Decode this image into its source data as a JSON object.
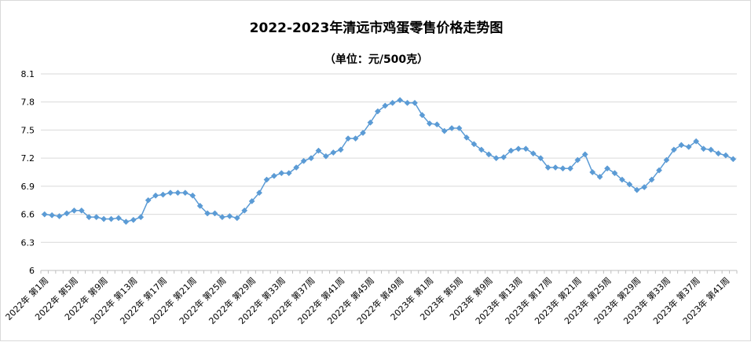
{
  "chart_data": {
    "type": "line",
    "title": "2022-2023年清远市鸡蛋零售价格走势图",
    "subtitle": "（单位：元/500克）",
    "y_ticks": [
      "8.1",
      "7.8",
      "7.5",
      "7.2",
      "6.9",
      "6.6",
      "6.3",
      "6"
    ],
    "ylim": [
      6,
      8.1
    ],
    "grid": "horizontal",
    "series_color": "#5b9bd5",
    "x_labels": [
      "2022年 第1周",
      "2022年 第5周",
      "2022年 第9周",
      "2022年 第13周",
      "2022年 第17周",
      "2022年 第21周",
      "2022年 第25周",
      "2022年 第29周",
      "2022年 第33周",
      "2022年 第37周",
      "2022年 第41周",
      "2022年 第45周",
      "2022年 第49周",
      "2023年 第1周",
      "2023年 第5周",
      "2023年 第9周",
      "2023年 第13周",
      "2023年 第17周",
      "2023年 第21周",
      "2023年 第25周",
      "2023年 第29周",
      "2023年 第33周",
      "2023年 第37周",
      "2023年 第41周"
    ],
    "values": [
      6.6,
      6.59,
      6.58,
      6.61,
      6.64,
      6.64,
      6.57,
      6.57,
      6.55,
      6.55,
      6.56,
      6.52,
      6.54,
      6.57,
      6.75,
      6.8,
      6.81,
      6.83,
      6.83,
      6.83,
      6.8,
      6.69,
      6.61,
      6.61,
      6.57,
      6.58,
      6.56,
      6.64,
      6.74,
      6.83,
      6.97,
      7.01,
      7.04,
      7.04,
      7.1,
      7.17,
      7.2,
      7.28,
      7.22,
      7.26,
      7.29,
      7.41,
      7.41,
      7.47,
      7.58,
      7.7,
      7.76,
      7.79,
      7.82,
      7.79,
      7.79,
      7.66,
      7.57,
      7.56,
      7.49,
      7.52,
      7.52,
      7.42,
      7.35,
      7.29,
      7.24,
      7.2,
      7.21,
      7.28,
      7.3,
      7.3,
      7.25,
      7.2,
      7.1,
      7.1,
      7.09,
      7.09,
      7.18,
      7.24,
      7.05,
      7.0,
      7.09,
      7.04,
      6.97,
      6.92,
      6.86,
      6.89,
      6.97,
      7.07,
      7.18,
      7.29,
      7.34,
      7.32,
      7.38,
      7.3,
      7.29,
      7.25,
      7.23,
      7.19
    ]
  }
}
